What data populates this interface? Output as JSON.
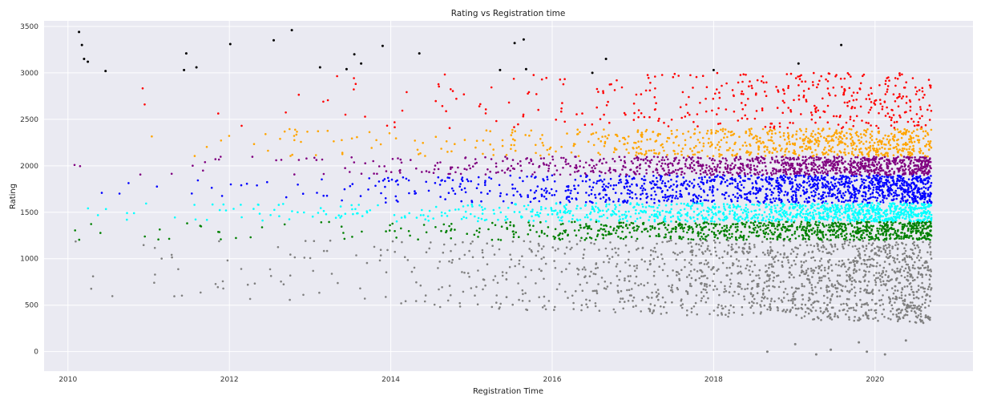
{
  "chart_data": {
    "type": "scatter",
    "title": "Rating vs Registration time",
    "xlabel": "Registration Time",
    "ylabel": "Rating",
    "xlim": [
      "2009-09-15",
      "2021-03-20"
    ],
    "ylim": [
      -210,
      3560
    ],
    "x_ticks": [
      "2010",
      "2012",
      "2014",
      "2016",
      "2018",
      "2020"
    ],
    "y_ticks": [
      "0",
      "500",
      "1000",
      "1500",
      "2000",
      "2500",
      "3000",
      "3500"
    ],
    "grid": true,
    "legend": "none",
    "background_color": "#eaeaf2",
    "bands": [
      {
        "range": [
          300,
          1199
        ],
        "color": "#808080"
      },
      {
        "range": [
          1200,
          1399
        ],
        "color": "#008000"
      },
      {
        "range": [
          1400,
          1599
        ],
        "color": "#00ffff"
      },
      {
        "range": [
          1600,
          1899
        ],
        "color": "#0000ff"
      },
      {
        "range": [
          1900,
          2099
        ],
        "color": "#800080"
      },
      {
        "range": [
          2100,
          2399
        ],
        "color": "#ffa500"
      },
      {
        "range": [
          2400,
          2999
        ],
        "color": "#ff0000"
      },
      {
        "range": [
          3000,
          3500
        ],
        "color": "#000000"
      }
    ],
    "highlighted_points": [
      {
        "x": "2010-02-20",
        "y": 3440,
        "color": "#000000"
      },
      {
        "x": "2010-03-05",
        "y": 3300,
        "color": "#000000"
      },
      {
        "x": "2010-03-15",
        "y": 3150,
        "color": "#000000"
      },
      {
        "x": "2010-04-01",
        "y": 3120,
        "color": "#000000"
      },
      {
        "x": "2010-06-20",
        "y": 3020,
        "color": "#000000"
      },
      {
        "x": "2011-06-20",
        "y": 3210,
        "color": "#000000"
      },
      {
        "x": "2011-06-10",
        "y": 3030,
        "color": "#000000"
      },
      {
        "x": "2011-08-05",
        "y": 3060,
        "color": "#000000"
      },
      {
        "x": "2012-01-05",
        "y": 3310,
        "color": "#000000"
      },
      {
        "x": "2012-07-20",
        "y": 3350,
        "color": "#000000"
      },
      {
        "x": "2012-10-10",
        "y": 3460,
        "color": "#000000"
      },
      {
        "x": "2013-02-15",
        "y": 3060,
        "color": "#000000"
      },
      {
        "x": "2013-06-15",
        "y": 3040,
        "color": "#000000"
      },
      {
        "x": "2013-07-20",
        "y": 3200,
        "color": "#000000"
      },
      {
        "x": "2013-08-20",
        "y": 3100,
        "color": "#000000"
      },
      {
        "x": "2013-11-25",
        "y": 3290,
        "color": "#000000"
      },
      {
        "x": "2014-05-10",
        "y": 3210,
        "color": "#000000"
      },
      {
        "x": "2015-05-10",
        "y": 3030,
        "color": "#000000"
      },
      {
        "x": "2015-07-15",
        "y": 3320,
        "color": "#000000"
      },
      {
        "x": "2015-08-25",
        "y": 3360,
        "color": "#000000"
      },
      {
        "x": "2015-09-05",
        "y": 3040,
        "color": "#000000"
      },
      {
        "x": "2016-07-01",
        "y": 3000,
        "color": "#000000"
      },
      {
        "x": "2016-09-01",
        "y": 3150,
        "color": "#000000"
      },
      {
        "x": "2018-01-01",
        "y": 3030,
        "color": "#000000"
      },
      {
        "x": "2019-01-20",
        "y": 3100,
        "color": "#000000"
      },
      {
        "x": "2019-08-01",
        "y": 3300,
        "color": "#000000"
      },
      {
        "x": "2018-09-01",
        "y": 0,
        "color": "#808080"
      },
      {
        "x": "2019-01-05",
        "y": 80,
        "color": "#808080"
      },
      {
        "x": "2019-04-10",
        "y": -30,
        "color": "#808080"
      },
      {
        "x": "2019-06-15",
        "y": 20,
        "color": "#808080"
      },
      {
        "x": "2019-10-20",
        "y": 100,
        "color": "#808080"
      },
      {
        "x": "2019-11-25",
        "y": 0,
        "color": "#808080"
      },
      {
        "x": "2020-02-15",
        "y": -30,
        "color": "#808080"
      },
      {
        "x": "2020-05-20",
        "y": 120,
        "color": "#808080"
      }
    ]
  }
}
